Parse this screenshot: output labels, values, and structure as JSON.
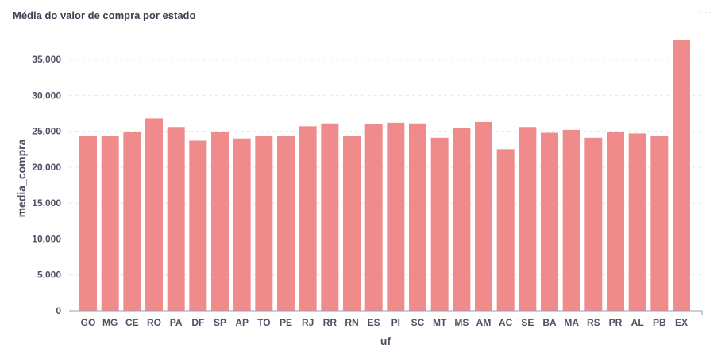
{
  "card": {
    "title": "Média do valor de compra por estado",
    "menu_icon": "more-horizontal-icon",
    "menu_glyph": "···"
  },
  "colors": {
    "bar": "#f08b8b",
    "grid": "#e8e9ee",
    "axis": "#9aa0ad",
    "text": "#4d5263"
  },
  "chart_data": {
    "type": "bar",
    "title": "",
    "xlabel": "uf",
    "ylabel": "media_compra",
    "ylim": [
      0,
      38000
    ],
    "yticks": [
      0,
      5000,
      10000,
      15000,
      20000,
      25000,
      30000,
      35000
    ],
    "ytick_labels": [
      "0",
      "5,000",
      "10,000",
      "15,000",
      "20,000",
      "25,000",
      "30,000",
      "35,000"
    ],
    "grid": true,
    "categories": [
      "GO",
      "MG",
      "CE",
      "RO",
      "PA",
      "DF",
      "SP",
      "AP",
      "TO",
      "PE",
      "RJ",
      "RR",
      "RN",
      "ES",
      "PI",
      "SC",
      "MT",
      "MS",
      "AM",
      "AC",
      "SE",
      "BA",
      "MA",
      "RS",
      "PR",
      "AL",
      "PB",
      "EX"
    ],
    "values": [
      24400,
      24300,
      24900,
      26800,
      25600,
      23700,
      24900,
      24000,
      24400,
      24300,
      25700,
      26100,
      24300,
      26000,
      26200,
      26100,
      24100,
      25500,
      26300,
      22500,
      25600,
      24800,
      25200,
      24100,
      24900,
      24700,
      24400,
      37700
    ]
  }
}
